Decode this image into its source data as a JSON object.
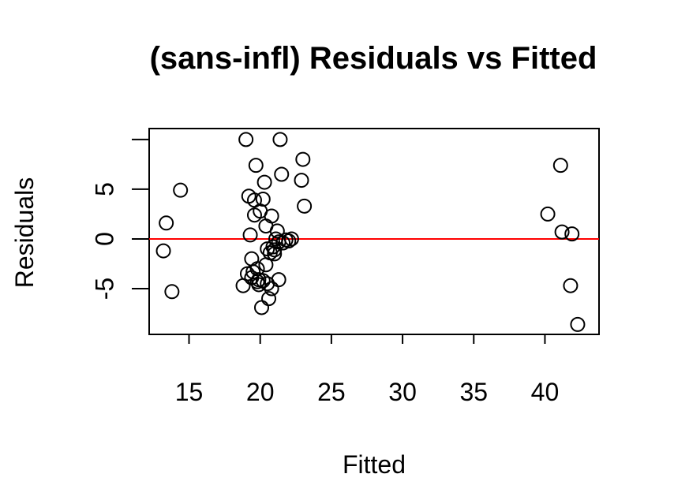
{
  "chart_data": {
    "type": "scatter",
    "title": "(sans-infl) Residuals vs Fitted",
    "xlabel": "Fitted",
    "ylabel": "Residuals",
    "xlim": [
      12.2,
      43.8
    ],
    "ylim": [
      -9.6,
      11.1
    ],
    "x_ticks": [
      15,
      20,
      25,
      30,
      35,
      40
    ],
    "x_tick_labels": [
      "15",
      "20",
      "25",
      "30",
      "35",
      "40"
    ],
    "y_ticks": [
      -5,
      0,
      5,
      10
    ],
    "y_tick_labels": [
      "-5",
      "0",
      "5",
      ""
    ],
    "grid": false,
    "reference_line": {
      "y": 0,
      "color": "#ff0000"
    },
    "marker": "open-circle",
    "x": [
      13.2,
      13.4,
      13.8,
      14.4,
      18.8,
      19.0,
      19.1,
      19.3,
      19.4,
      19.5,
      19.6,
      19.7,
      19.8,
      19.9,
      20.0,
      20.1,
      20.2,
      20.3,
      20.4,
      20.5,
      20.6,
      20.7,
      20.8,
      20.9,
      21.0,
      21.1,
      21.2,
      21.3,
      21.4,
      21.5,
      21.6,
      21.8,
      22.0,
      22.2,
      22.9,
      23.0,
      23.1,
      19.2,
      19.4,
      19.6,
      19.9,
      20.2,
      20.5,
      20.8,
      21.0,
      21.3,
      19.8,
      20.4,
      40.2,
      41.1,
      41.2,
      41.8,
      41.9,
      42.3
    ],
    "y": [
      -1.2,
      1.6,
      -5.3,
      4.9,
      -4.7,
      10.0,
      -3.5,
      0.4,
      -2.0,
      -3.3,
      3.9,
      7.4,
      -4.3,
      -4.1,
      2.8,
      -6.9,
      4.0,
      5.7,
      -2.6,
      -4.5,
      -6.0,
      -1.4,
      2.3,
      -0.8,
      -1.1,
      0.0,
      0.8,
      -4.1,
      10.0,
      6.5,
      -0.4,
      -0.1,
      -0.2,
      0.0,
      5.9,
      8.0,
      3.3,
      4.3,
      -3.9,
      2.4,
      -4.6,
      -4.2,
      -1.0,
      -5.0,
      -1.5,
      -0.3,
      -3.0,
      1.3,
      2.5,
      7.4,
      0.7,
      -4.7,
      0.5,
      -8.6
    ]
  }
}
